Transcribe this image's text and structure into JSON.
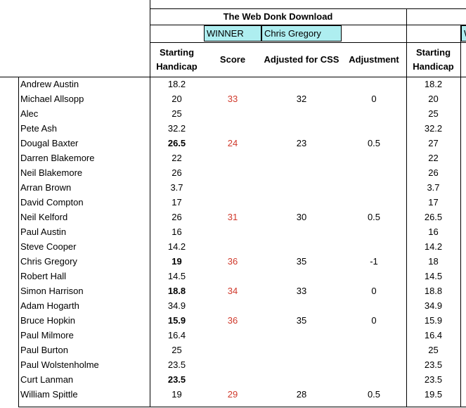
{
  "header": {
    "title": "The Web Donk Download",
    "winner_label": "WINNER",
    "winner": "Chris Gregory",
    "columns": [
      [
        "Starting",
        "Handicap"
      ],
      [
        "Score"
      ],
      [
        "Adjusted for CSS"
      ],
      [
        "Adjustment"
      ],
      [
        "Starting",
        "Handicap"
      ]
    ]
  },
  "table": {
    "rows": [
      {
        "name": "Andrew Austin",
        "handicap": 18.2,
        "bold": false,
        "score": null,
        "adjusted": null,
        "adjustment": null,
        "next_handicap": 18.2
      },
      {
        "name": "Michael Allsopp",
        "handicap": 20,
        "bold": false,
        "score": 33,
        "adjusted": 32,
        "adjustment": 0,
        "next_handicap": 20
      },
      {
        "name": "Alec",
        "handicap": 25,
        "bold": false,
        "score": null,
        "adjusted": null,
        "adjustment": null,
        "next_handicap": 25
      },
      {
        "name": "Pete Ash",
        "handicap": 32.2,
        "bold": false,
        "score": null,
        "adjusted": null,
        "adjustment": null,
        "next_handicap": 32.2
      },
      {
        "name": "Dougal Baxter",
        "handicap": 26.5,
        "bold": true,
        "score": 24,
        "adjusted": 23,
        "adjustment": 0.5,
        "next_handicap": 27
      },
      {
        "name": "Darren Blakemore",
        "handicap": 22,
        "bold": false,
        "score": null,
        "adjusted": null,
        "adjustment": null,
        "next_handicap": 22
      },
      {
        "name": "Neil Blakemore",
        "handicap": 26,
        "bold": false,
        "score": null,
        "adjusted": null,
        "adjustment": null,
        "next_handicap": 26
      },
      {
        "name": "Arran Brown",
        "handicap": 3.7,
        "bold": false,
        "score": null,
        "adjusted": null,
        "adjustment": null,
        "next_handicap": 3.7
      },
      {
        "name": "David Compton",
        "handicap": 17,
        "bold": false,
        "score": null,
        "adjusted": null,
        "adjustment": null,
        "next_handicap": 17
      },
      {
        "name": "Neil Kelford",
        "handicap": 26,
        "bold": false,
        "score": 31,
        "adjusted": 30,
        "adjustment": 0.5,
        "next_handicap": 26.5
      },
      {
        "name": "Paul Austin",
        "handicap": 16,
        "bold": false,
        "score": null,
        "adjusted": null,
        "adjustment": null,
        "next_handicap": 16
      },
      {
        "name": "Steve Cooper",
        "handicap": 14.2,
        "bold": false,
        "score": null,
        "adjusted": null,
        "adjustment": null,
        "next_handicap": 14.2
      },
      {
        "name": "Chris Gregory",
        "handicap": 19,
        "bold": true,
        "score": 36,
        "adjusted": 35,
        "adjustment": -1,
        "next_handicap": 18
      },
      {
        "name": "Robert Hall",
        "handicap": 14.5,
        "bold": false,
        "score": null,
        "adjusted": null,
        "adjustment": null,
        "next_handicap": 14.5
      },
      {
        "name": "Simon Harrison",
        "handicap": 18.8,
        "bold": true,
        "score": 34,
        "adjusted": 33,
        "adjustment": 0,
        "next_handicap": 18.8
      },
      {
        "name": "Adam Hogarth",
        "handicap": 34.9,
        "bold": false,
        "score": null,
        "adjusted": null,
        "adjustment": null,
        "next_handicap": 34.9
      },
      {
        "name": "Bruce Hopkin",
        "handicap": 15.9,
        "bold": true,
        "score": 36,
        "adjusted": 35,
        "adjustment": 0,
        "next_handicap": 15.9
      },
      {
        "name": "Paul Milmore",
        "handicap": 16.4,
        "bold": false,
        "score": null,
        "adjusted": null,
        "adjustment": null,
        "next_handicap": 16.4
      },
      {
        "name": "Paul Burton",
        "handicap": 25,
        "bold": false,
        "score": null,
        "adjusted": null,
        "adjustment": null,
        "next_handicap": 25
      },
      {
        "name": "Paul Wolstenholme",
        "handicap": 23.5,
        "bold": false,
        "score": null,
        "adjusted": null,
        "adjustment": null,
        "next_handicap": 23.5
      },
      {
        "name": "Curt Lanman",
        "handicap": 23.5,
        "bold": true,
        "score": null,
        "adjusted": null,
        "adjustment": null,
        "next_handicap": 23.5
      },
      {
        "name": "William Spittle",
        "handicap": 19,
        "bold": false,
        "score": 29,
        "adjusted": 28,
        "adjustment": 0.5,
        "next_handicap": 19.5
      }
    ]
  }
}
